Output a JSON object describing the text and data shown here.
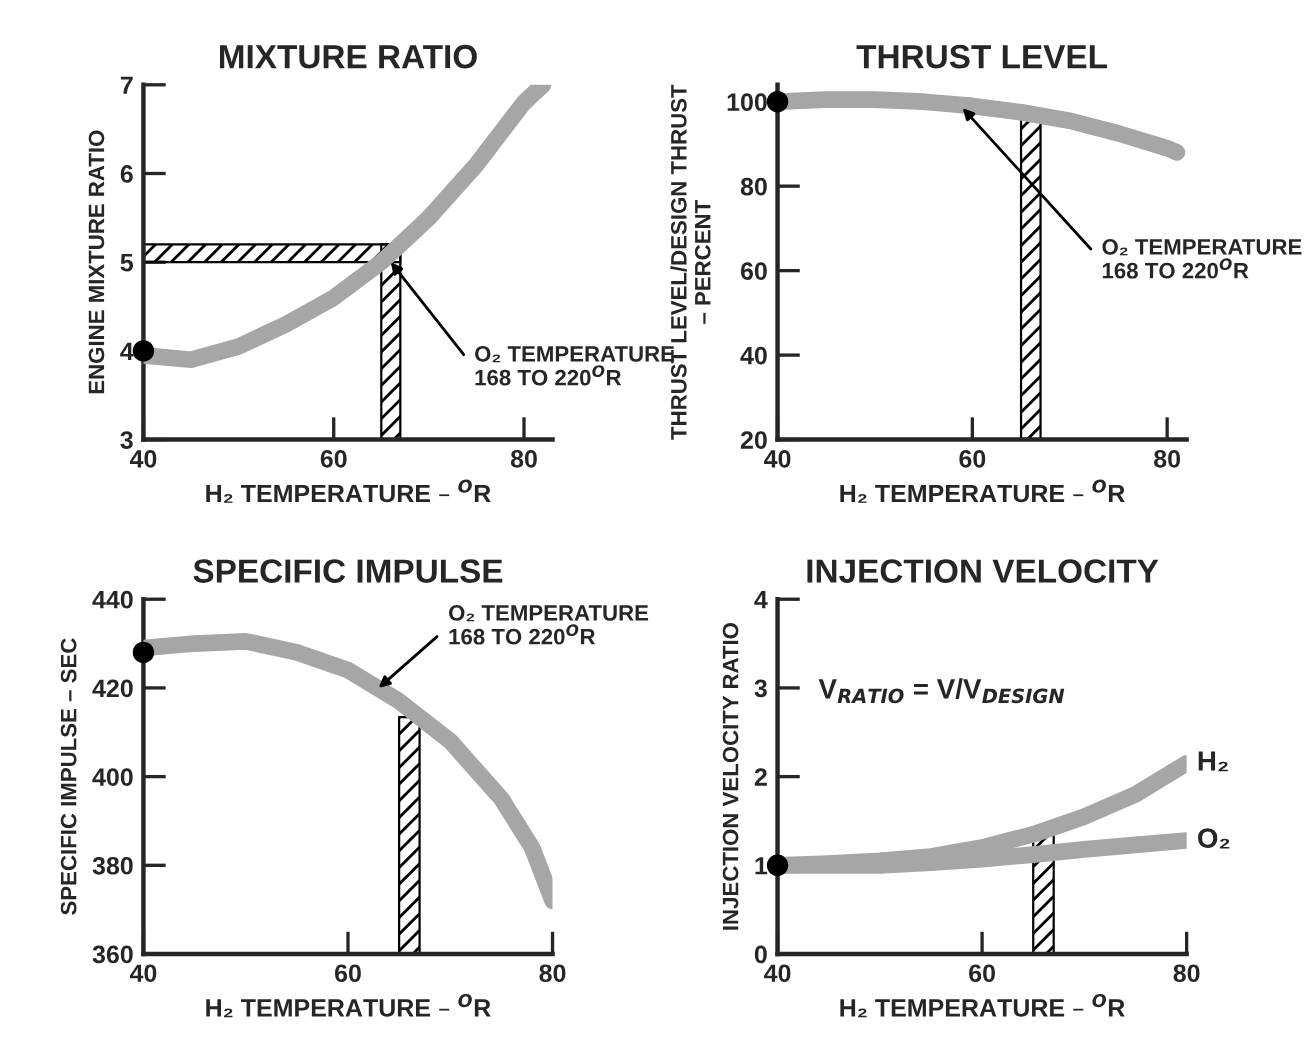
{
  "chart_data": [
    {
      "type": "line",
      "title": "MIXTURE RATIO",
      "xlabel": "H₂ TEMPERATURE – $^{O}$R",
      "ylabel": "ENGINE MIXTURE RATIO",
      "xlim": [
        40,
        83
      ],
      "xticks": [
        40,
        60,
        80
      ],
      "ylim": [
        3,
        7
      ],
      "yticks": [
        3,
        4,
        5,
        6,
        7
      ],
      "grid": false,
      "legend": false,
      "series": [
        {
          "color": "#a6a6a6",
          "x": [
            40,
            45,
            50,
            55,
            60,
            65,
            70,
            75,
            80,
            82
          ],
          "values": [
            3.95,
            3.9,
            4.05,
            4.3,
            4.6,
            5.0,
            5.5,
            6.1,
            6.8,
            7.0
          ]
        },
        {
          "type": "scatter",
          "color": "#000000",
          "marker": "circle",
          "x": [
            40
          ],
          "values": [
            4
          ]
        }
      ],
      "bands": [
        {
          "axis": "x",
          "from": 65,
          "to": 67,
          "color": "#000000"
        },
        {
          "axis": "y",
          "from": 5,
          "to": 5.2,
          "color": "#000000"
        }
      ],
      "annotations": [
        {
          "text": "O₂ TEMPERATURE\n168 TO 220$^{O}$R",
          "x": 66,
          "y": 5.0
        }
      ]
    },
    {
      "type": "line",
      "title": "THRUST LEVEL",
      "xlabel": "H₂ TEMPERATURE – $^{O}$R",
      "ylabel": "THRUST LEVEL/DESIGN THRUST\n– PERCENT",
      "xlim": [
        40,
        82
      ],
      "xticks": [
        40,
        60,
        80
      ],
      "ylim": [
        20,
        104
      ],
      "yticks": [
        20,
        40,
        60,
        80,
        100
      ],
      "grid": false,
      "legend": false,
      "series": [
        {
          "color": "#a6a6a6",
          "x": [
            40,
            45,
            50,
            55,
            60,
            65,
            70,
            75,
            80,
            81
          ],
          "values": [
            100,
            100.5,
            100.5,
            100,
            99,
            97.5,
            95.5,
            92.5,
            89,
            88
          ]
        },
        {
          "type": "scatter",
          "color": "#000000",
          "marker": "circle",
          "x": [
            40
          ],
          "values": [
            100
          ]
        }
      ],
      "bands": [
        {
          "axis": "x",
          "from": 65,
          "to": 67,
          "color": "#000000"
        }
      ],
      "annotations": [
        {
          "text": "O₂ TEMPERATURE\n168 TO 220$^{O}$R",
          "x": 59,
          "y": 98.5
        }
      ]
    },
    {
      "type": "line",
      "title": "SPECIFIC IMPULSE",
      "xlabel": "H₂ TEMPERATURE – $^{O}$R",
      "ylabel": "SPECIFIC IMPULSE – SEC",
      "xlim": [
        40,
        80
      ],
      "xticks": [
        40,
        60,
        80
      ],
      "ylim": [
        360,
        440
      ],
      "yticks": [
        360,
        380,
        400,
        420,
        440
      ],
      "grid": false,
      "legend": false,
      "series": [
        {
          "color": "#a6a6a6",
          "x": [
            40,
            45,
            50,
            55,
            60,
            65,
            70,
            75,
            78,
            80
          ],
          "values": [
            429,
            430,
            430.5,
            428,
            424,
            417,
            408,
            395,
            384,
            372
          ]
        },
        {
          "type": "scatter",
          "color": "#000000",
          "marker": "circle",
          "x": [
            40
          ],
          "values": [
            428
          ]
        }
      ],
      "bands": [
        {
          "axis": "x",
          "from": 65,
          "to": 67,
          "color": "#000000"
        }
      ],
      "annotations": [
        {
          "text": "O₂ TEMPERATURE\n168 TO 220$^{O}$R",
          "x": 63,
          "y": 420
        }
      ]
    },
    {
      "type": "line",
      "title": "INJECTION VELOCITY",
      "xlabel": "H₂ TEMPERATURE – $^{O}$R",
      "ylabel": "INJECTION VELOCITY RATIO",
      "xlim": [
        40,
        80
      ],
      "xticks": [
        40,
        60,
        80
      ],
      "ylim": [
        0,
        4
      ],
      "yticks": [
        0,
        1,
        2,
        3,
        4
      ],
      "grid": false,
      "legend": false,
      "series": [
        {
          "name": "H₂",
          "color": "#a6a6a6",
          "x": [
            40,
            45,
            50,
            55,
            60,
            65,
            70,
            75,
            80
          ],
          "values": [
            1.0,
            1.02,
            1.05,
            1.1,
            1.2,
            1.35,
            1.55,
            1.8,
            2.15
          ]
        },
        {
          "name": "O₂",
          "color": "#a6a6a6",
          "x": [
            40,
            45,
            50,
            55,
            60,
            65,
            70,
            75,
            80
          ],
          "values": [
            1.0,
            1.0,
            1.0,
            1.03,
            1.07,
            1.12,
            1.18,
            1.23,
            1.28
          ]
        },
        {
          "type": "scatter",
          "color": "#000000",
          "marker": "circle",
          "x": [
            40
          ],
          "values": [
            1
          ]
        }
      ],
      "bands": [
        {
          "axis": "x",
          "from": 65,
          "to": 67,
          "color": "#000000"
        }
      ],
      "annotations": [
        "V$_{RATIO}$ = V/V$_{DESIGN}$"
      ]
    }
  ]
}
